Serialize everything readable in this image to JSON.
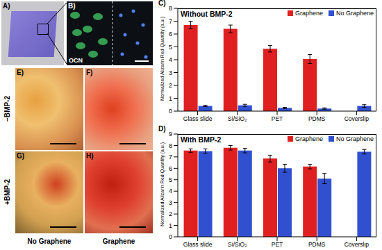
{
  "chart_data": [
    {
      "type": "bar",
      "annotations": [
        "C)"
      ],
      "title": "Without BMP-2",
      "y_label": "Normalized Alizarin Red Quantity (a.u.)",
      "categories": [
        "Glass slide",
        "Si/SiO₂",
        "PET",
        "PDMS",
        "Coverslip"
      ],
      "series": [
        {
          "name": "Graphene",
          "color": "#e02020",
          "values": [
            6.7,
            6.4,
            4.85,
            4.05,
            null
          ],
          "errors": [
            0.3,
            0.3,
            0.25,
            0.35,
            null
          ]
        },
        {
          "name": "No Graphene",
          "color": "#3050d0",
          "values": [
            0.4,
            0.45,
            0.25,
            0.2,
            0.4
          ],
          "errors": [
            0.05,
            0.08,
            0.05,
            0.05,
            0.1
          ]
        }
      ],
      "ylim": [
        0,
        8
      ],
      "yticks": [
        0,
        1,
        2,
        3,
        4,
        5,
        6,
        7,
        8
      ],
      "grid": false,
      "legend": "upper right"
    },
    {
      "type": "bar",
      "annotations": [
        "D)"
      ],
      "title": "With BMP-2",
      "y_label": "Normalized Alizarin Red Quantity (a.u.)",
      "categories": [
        "Glass slide",
        "Si/SiO₂",
        "PET",
        "PDMS",
        "Coverslip"
      ],
      "series": [
        {
          "name": "Graphene",
          "color": "#e02020",
          "values": [
            7.55,
            7.8,
            6.85,
            6.15,
            null
          ],
          "errors": [
            0.15,
            0.2,
            0.3,
            0.2,
            null
          ]
        },
        {
          "name": "No Graphene",
          "color": "#3050d0",
          "values": [
            7.5,
            7.55,
            6.0,
            5.1,
            7.45
          ],
          "errors": [
            0.2,
            0.2,
            0.35,
            0.45,
            0.2
          ]
        }
      ],
      "ylim": [
        0,
        9
      ],
      "yticks": [
        0,
        1,
        2,
        3,
        4,
        5,
        6,
        7,
        8,
        9
      ],
      "grid": false,
      "legend": "upper right"
    }
  ],
  "image_panels": [
    {
      "label": "A)"
    },
    {
      "label": "B)",
      "text": "OCN"
    },
    {
      "label": "E)"
    },
    {
      "label": "F)"
    },
    {
      "label": "G)"
    },
    {
      "label": "H)"
    }
  ],
  "row_labels": [
    "−BMP-2",
    "+BMP-2"
  ],
  "column_labels": [
    "No Graphene",
    "Graphene"
  ]
}
